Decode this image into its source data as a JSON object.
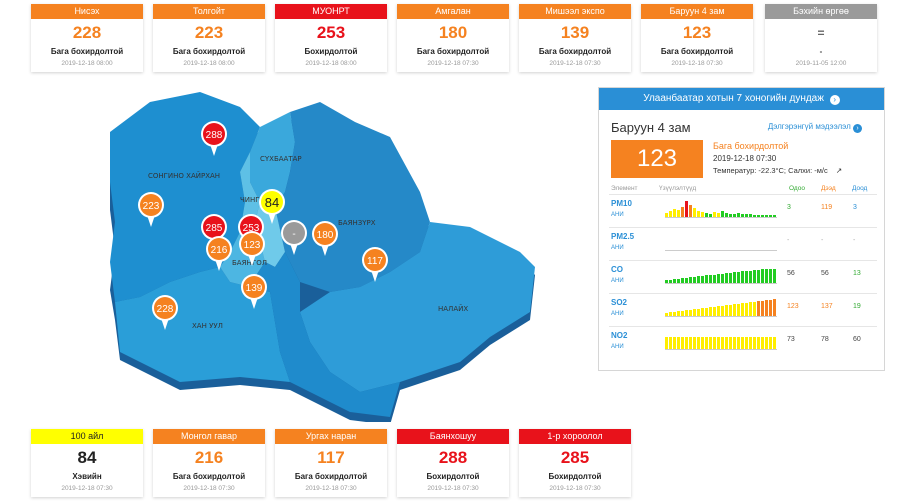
{
  "top_cards": [
    {
      "name": "Нисэх",
      "value": "228",
      "status": "Бага бохирдолтой",
      "time": "2019-12-18 08:00",
      "level": "orange"
    },
    {
      "name": "Толгойт",
      "value": "223",
      "status": "Бага бохирдолтой",
      "time": "2019-12-18 08:00",
      "level": "orange"
    },
    {
      "name": "МУОНРТ",
      "value": "253",
      "status": "Бохирдолтой",
      "time": "2019-12-18 08:00",
      "level": "red"
    },
    {
      "name": "Амгалан",
      "value": "180",
      "status": "Бага бохирдолтой",
      "time": "2019-12-18 07:30",
      "level": "orange"
    },
    {
      "name": "Мишээл экспо",
      "value": "139",
      "status": "Бага бохирдолтой",
      "time": "2019-12-18 07:30",
      "level": "orange"
    },
    {
      "name": "Баруун 4 зам",
      "value": "123",
      "status": "Бага бохирдолтой",
      "time": "2019-12-18 07:30",
      "level": "orange"
    },
    {
      "name": "Бэхийн өргөө",
      "value": "=",
      "status": "-",
      "time": "2019-11-05 12:00",
      "level": "gray"
    }
  ],
  "bottom_cards": [
    {
      "name": "100 айл",
      "value": "84",
      "status": "Хэвийн",
      "time": "2019-12-18 07:30",
      "level": "yellow"
    },
    {
      "name": "Монгол гавар",
      "value": "216",
      "status": "Бага бохирдолтой",
      "time": "2019-12-18 07:30",
      "level": "orange"
    },
    {
      "name": "Ургах наран",
      "value": "117",
      "status": "Бага бохирдолтой",
      "time": "2019-12-18 07:30",
      "level": "orange"
    },
    {
      "name": "Баянхошуу",
      "value": "288",
      "status": "Бохирдолтой",
      "time": "2019-12-18 07:30",
      "level": "red"
    },
    {
      "name": "1-р хороолол",
      "value": "285",
      "status": "Бохирдолтой",
      "time": "2019-12-18 07:30",
      "level": "red"
    }
  ],
  "map": {
    "districts": [
      "СОНГИНО ХАЙРХАН",
      "СҮХБААТАР",
      "ЧИНГ",
      "БАЯНЗҮРХ",
      "БАЯН",
      "ГОЛ",
      "ХАН УУЛ",
      "НАЛАЙХ"
    ],
    "pins": [
      {
        "value": "288",
        "level": "red"
      },
      {
        "value": "223",
        "level": "orange"
      },
      {
        "value": "285",
        "level": "red"
      },
      {
        "value": "253",
        "level": "red"
      },
      {
        "value": "84",
        "level": "yellow"
      },
      {
        "value": "-",
        "level": "gray"
      },
      {
        "value": "180",
        "level": "orange"
      },
      {
        "value": "216",
        "level": "orange"
      },
      {
        "value": "123",
        "level": "orange"
      },
      {
        "value": "117",
        "level": "orange"
      },
      {
        "value": "139",
        "level": "orange"
      },
      {
        "value": "228",
        "level": "orange"
      }
    ]
  },
  "panel": {
    "header": "Улаанбаатар хотын 7 хоногийн дундаж",
    "station": "Баруун 4 зам",
    "more": "Дэлгэрэнгүй мэдээлэл",
    "aqi": "123",
    "status": "Бага бохирдолтой",
    "date": "2019-12-18 07:30",
    "weather": "Температур: -22.3°C; Салхи:   -м/с",
    "col_element": "Элемент",
    "col_trend": "Үзүүлэлтүүд",
    "col_now": "Одоо",
    "col_max": "Дээд",
    "col_min": "Доод",
    "rows": [
      {
        "name": "PM10",
        "unit": "AHИ",
        "now": "3",
        "max": "119",
        "min": "3"
      },
      {
        "name": "PM2.5",
        "unit": "AHИ",
        "now": "-",
        "max": "-",
        "min": "-"
      },
      {
        "name": "CO",
        "unit": "AHИ",
        "now": "56",
        "max": "56",
        "min": "13"
      },
      {
        "name": "SO2",
        "unit": "AHИ",
        "now": "123",
        "max": "137",
        "min": "19"
      },
      {
        "name": "NO2",
        "unit": "AHИ",
        "now": "73",
        "max": "78",
        "min": "60"
      }
    ]
  },
  "colors": {
    "orange": "#f58220",
    "red": "#e8121b",
    "yellow": "#ffff00",
    "gray": "#9a9a9a",
    "blue": "#2a8fd6"
  }
}
